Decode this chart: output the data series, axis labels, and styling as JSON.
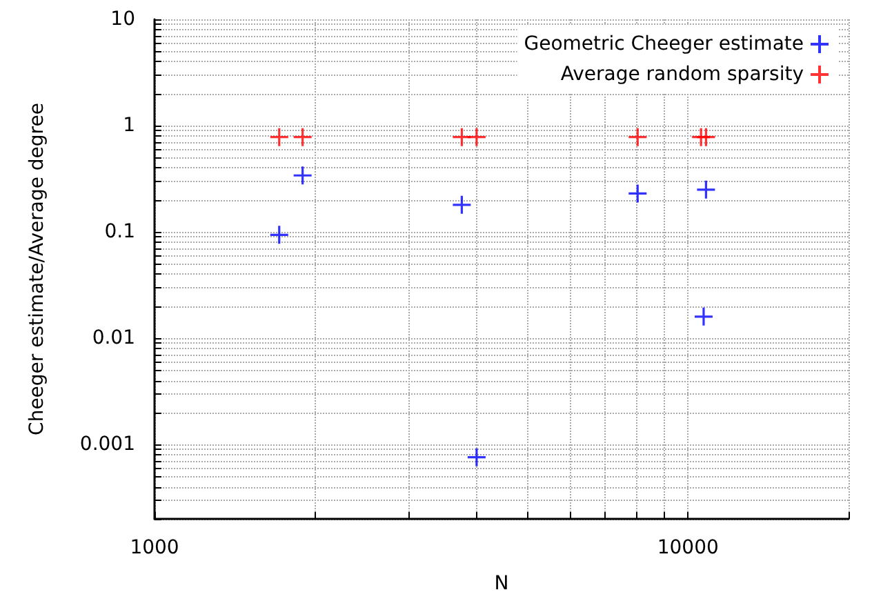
{
  "chart_data": {
    "type": "scatter",
    "xlabel": "N",
    "ylabel": "Cheeger estimate/Average degree",
    "log": "xy",
    "grid": true,
    "legend": "top right",
    "marker": "cross",
    "xlim": [
      1000,
      20000
    ],
    "xticks": [
      1000,
      {
        "value": 2000,
        "label": null
      },
      {
        "value": 3000,
        "label": null
      },
      {
        "value": 4000,
        "label": null
      },
      {
        "value": 5000,
        "label": null
      },
      {
        "value": 6000,
        "label": null
      },
      {
        "value": 7000,
        "label": null
      },
      {
        "value": 8000,
        "label": null
      },
      {
        "value": 9000,
        "label": null
      },
      10000,
      {
        "value": 20000,
        "label": null
      }
    ],
    "ylim": [
      0.0002,
      10
    ],
    "yticks": [
      {
        "value": 0.0002,
        "label": null
      },
      {
        "value": 0.0003,
        "label": null
      },
      {
        "value": 0.0004,
        "label": null
      },
      {
        "value": 0.0005,
        "label": null
      },
      {
        "value": 0.0006,
        "label": null
      },
      {
        "value": 0.0007,
        "label": null
      },
      {
        "value": 0.0008,
        "label": null
      },
      {
        "value": 0.0009,
        "label": null
      },
      0.001,
      {
        "value": 0.002,
        "label": null
      },
      {
        "value": 0.003,
        "label": null
      },
      {
        "value": 0.004,
        "label": null
      },
      {
        "value": 0.005,
        "label": null
      },
      {
        "value": 0.006,
        "label": null
      },
      {
        "value": 0.007,
        "label": null
      },
      {
        "value": 0.008,
        "label": null
      },
      {
        "value": 0.009,
        "label": null
      },
      0.01,
      {
        "value": 0.02,
        "label": null
      },
      {
        "value": 0.03,
        "label": null
      },
      {
        "value": 0.04,
        "label": null
      },
      {
        "value": 0.05,
        "label": null
      },
      {
        "value": 0.06,
        "label": null
      },
      {
        "value": 0.07,
        "label": null
      },
      {
        "value": 0.08,
        "label": null
      },
      {
        "value": 0.09,
        "label": null
      },
      0.1,
      {
        "value": 0.2,
        "label": null
      },
      {
        "value": 0.3,
        "label": null
      },
      {
        "value": 0.4,
        "label": null
      },
      {
        "value": 0.5,
        "label": null
      },
      {
        "value": 0.6,
        "label": null
      },
      {
        "value": 0.7,
        "label": null
      },
      {
        "value": 0.8,
        "label": null
      },
      {
        "value": 0.9,
        "label": null
      },
      1,
      {
        "value": 2,
        "label": null
      },
      {
        "value": 3,
        "label": null
      },
      {
        "value": 4,
        "label": null
      },
      {
        "value": 5,
        "label": null
      },
      {
        "value": 6,
        "label": null
      },
      {
        "value": 7,
        "label": null
      },
      {
        "value": 8,
        "label": null
      },
      {
        "value": 9,
        "label": null
      },
      10
    ],
    "series": [
      {
        "name": "Geometric Cheeger estimate",
        "color": "#0000ff",
        "x": [
          1713,
          1895,
          3767,
          4016,
          8047,
          10810,
          10700
        ],
        "values": [
          0.094,
          0.34,
          0.18,
          0.00076,
          0.23,
          0.25,
          0.016
        ]
      },
      {
        "name": "Average random sparsity",
        "color": "#ff0000",
        "x": [
          1713,
          1895,
          3767,
          4016,
          8047,
          10580,
          10810
        ],
        "values": [
          0.78,
          0.78,
          0.78,
          0.78,
          0.78,
          0.78,
          0.78
        ]
      }
    ]
  }
}
